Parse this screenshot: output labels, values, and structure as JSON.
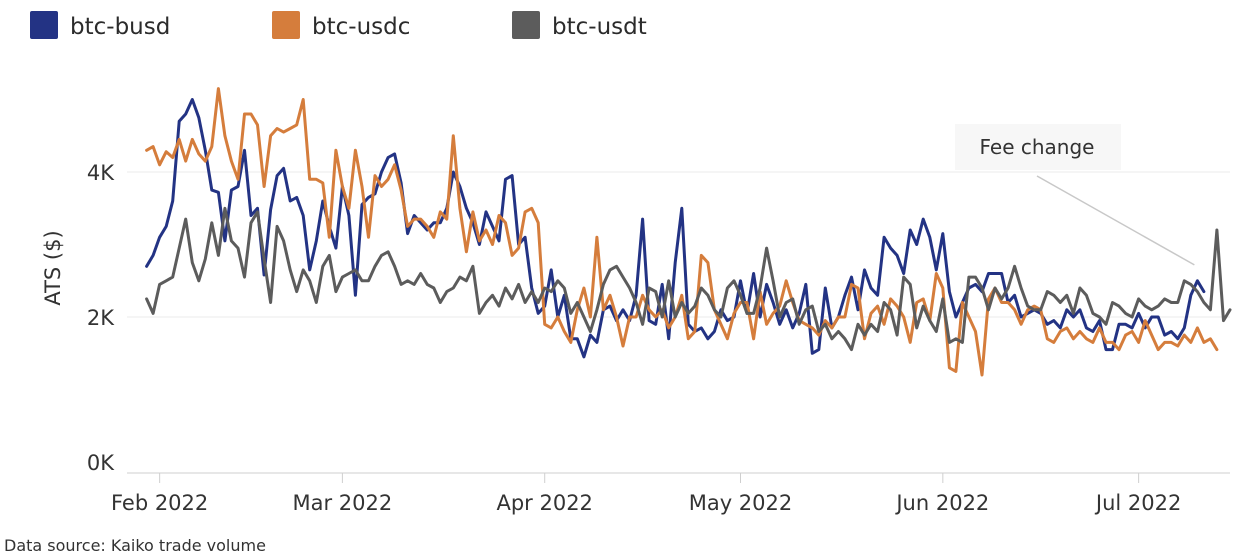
{
  "chart_data": {
    "type": "line",
    "title": "",
    "xlabel": "",
    "ylabel": "ATS ($)",
    "ylim": [
      0,
      5200
    ],
    "y_ticks": [
      {
        "value": 0,
        "label": "0K"
      },
      {
        "value": 2000,
        "label": "2K"
      },
      {
        "value": 4000,
        "label": "4K"
      }
    ],
    "x_start": "2022-01-27",
    "x_end": "2022-07-15",
    "x_ticks": [
      {
        "date": "2022-02-01",
        "label": "Feb 2022"
      },
      {
        "date": "2022-03-01",
        "label": "Mar 2022"
      },
      {
        "date": "2022-04-01",
        "label": "Apr 2022"
      },
      {
        "date": "2022-05-01",
        "label": "May 2022"
      },
      {
        "date": "2022-06-01",
        "label": "Jun 2022"
      },
      {
        "date": "2022-07-01",
        "label": "Jul 2022"
      }
    ],
    "grid": "horizontal",
    "legend_position": "top-left",
    "series": [
      {
        "name": "btc-busd",
        "color": "#233384",
        "x_start": "2022-01-30",
        "values": [
          2700,
          2850,
          3100,
          3250,
          3600,
          4700,
          4800,
          5000,
          4750,
          4300,
          3750,
          3720,
          3050,
          3750,
          3800,
          4300,
          3400,
          3500,
          2580,
          3480,
          3950,
          4050,
          3600,
          3650,
          3400,
          2650,
          3050,
          3600,
          3250,
          2950,
          3800,
          3400,
          2300,
          3550,
          3650,
          3700,
          4000,
          4200,
          4250,
          3850,
          3150,
          3400,
          3300,
          3200,
          3300,
          3300,
          3500,
          4000,
          3800,
          3500,
          3300,
          3000,
          3450,
          3250,
          3050,
          3900,
          3950,
          3000,
          3100,
          2400,
          2050,
          2150,
          2650,
          2000,
          2300,
          1700,
          1700,
          1450,
          1750,
          1650,
          2100,
          2150,
          1950,
          2100,
          1950,
          2300,
          3350,
          1950,
          1900,
          2450,
          1700,
          2750,
          3500,
          1900,
          1800,
          1850,
          1700,
          1800,
          2100,
          1950,
          2000,
          2500,
          2050,
          2600,
          2000,
          2450,
          2200,
          1900,
          2100,
          1850,
          2050,
          2450,
          1500,
          1550,
          2400,
          1850,
          2000,
          2300,
          2550,
          2100,
          2650,
          2400,
          2300,
          3100,
          2950,
          2850,
          2600,
          3200,
          3000,
          3350,
          3100,
          2650,
          3150,
          2350,
          2000,
          2200,
          2400,
          2450,
          2350,
          2600,
          2600,
          2600,
          2200,
          2300,
          2000,
          2050,
          2100,
          2050,
          1900,
          1950,
          1850,
          2100,
          2000,
          2100,
          1850,
          1800,
          1950,
          1550,
          1550,
          1900,
          1900,
          1850,
          2050,
          1850,
          2000,
          2000,
          1750,
          1800,
          1700,
          1850,
          2300,
          2500,
          2350
        ]
      },
      {
        "name": "btc-usdc",
        "color": "#d57d3c",
        "x_start": "2022-01-30",
        "values": [
          4300,
          4350,
          4100,
          4280,
          4200,
          4450,
          4150,
          4450,
          4250,
          4150,
          4350,
          5150,
          4500,
          4150,
          3900,
          4800,
          4800,
          4650,
          3800,
          4500,
          4600,
          4550,
          4600,
          4650,
          5000,
          3900,
          3900,
          3850,
          3100,
          4300,
          3800,
          3500,
          4300,
          3800,
          3100,
          3950,
          3800,
          3900,
          4100,
          3750,
          3250,
          3350,
          3350,
          3250,
          3100,
          3450,
          3350,
          4500,
          3500,
          2900,
          3450,
          3050,
          3200,
          3000,
          3400,
          3300,
          2850,
          2950,
          3450,
          3500,
          3300,
          1900,
          1850,
          2000,
          1800,
          1650,
          2100,
          2400,
          2000,
          3100,
          2100,
          2300,
          2000,
          1600,
          2000,
          2000,
          2300,
          2100,
          2000,
          2100,
          1850,
          2000,
          2300,
          1700,
          1800,
          2850,
          2750,
          2100,
          1900,
          1700,
          2050,
          2200,
          2200,
          1700,
          2350,
          1900,
          2050,
          2150,
          2500,
          2200,
          1950,
          1900,
          1850,
          1750,
          1950,
          1850,
          2000,
          2000,
          2450,
          2400,
          1700,
          2050,
          2150,
          1900,
          2250,
          2150,
          2000,
          1650,
          2200,
          2250,
          1950,
          2600,
          2400,
          1300,
          1250,
          2200,
          2000,
          1800,
          1200,
          2250,
          2400,
          2200,
          2200,
          2100,
          1900,
          2100,
          2150,
          2100,
          1700,
          1650,
          1800,
          1850,
          1700,
          1800,
          1700,
          1650,
          1850,
          1650,
          1650,
          1550,
          1750,
          1800,
          1650,
          1950,
          1750,
          1550,
          1650,
          1650,
          1600,
          1750,
          1650,
          1850,
          1650,
          1700,
          1550
        ]
      },
      {
        "name": "btc-usdt",
        "color": "#5c5c5c",
        "x_start": "2022-01-30",
        "values": [
          2250,
          2050,
          2450,
          2500,
          2550,
          2950,
          3350,
          2750,
          2500,
          2800,
          3300,
          2850,
          3500,
          3050,
          2950,
          2550,
          3300,
          3450,
          2800,
          2200,
          3250,
          3050,
          2650,
          2350,
          2650,
          2500,
          2200,
          2700,
          2850,
          2350,
          2550,
          2600,
          2650,
          2500,
          2500,
          2700,
          2850,
          2900,
          2700,
          2450,
          2500,
          2450,
          2600,
          2450,
          2400,
          2200,
          2350,
          2400,
          2550,
          2500,
          2700,
          2050,
          2200,
          2300,
          2150,
          2400,
          2250,
          2450,
          2200,
          2350,
          2200,
          2400,
          2350,
          2500,
          2400,
          2050,
          2200,
          2000,
          1800,
          2100,
          2450,
          2650,
          2700,
          2550,
          2400,
          2200,
          1900,
          2400,
          2350,
          2000,
          2500,
          2000,
          2200,
          2050,
          2150,
          2400,
          2300,
          2100,
          2000,
          2400,
          2500,
          2300,
          2050,
          2050,
          2400,
          2950,
          2500,
          2000,
          2200,
          2250,
          1900,
          2100,
          2150,
          1800,
          1900,
          1700,
          1800,
          1700,
          1550,
          1900,
          1750,
          1900,
          1800,
          2200,
          2100,
          1750,
          2550,
          2450,
          1850,
          2150,
          1950,
          1800,
          2250,
          1650,
          1700,
          1650,
          2550,
          2550,
          2400,
          2100,
          2400,
          2250,
          2400,
          2700,
          2400,
          2150,
          2100,
          2100,
          2350,
          2300,
          2200,
          2300,
          2050,
          2400,
          2300,
          2050,
          2000,
          1900,
          2200,
          2150,
          2050,
          2000,
          2250,
          2150,
          2100,
          2150,
          2250,
          2200,
          2200,
          2500,
          2450,
          2350,
          2200,
          2100,
          3200,
          1950,
          2100
        ]
      }
    ],
    "annotations": [
      {
        "text": "Fee change",
        "date": "2022-07-10",
        "value": 2650
      }
    ]
  },
  "source_note": "Data source: Kaiko trade volume"
}
